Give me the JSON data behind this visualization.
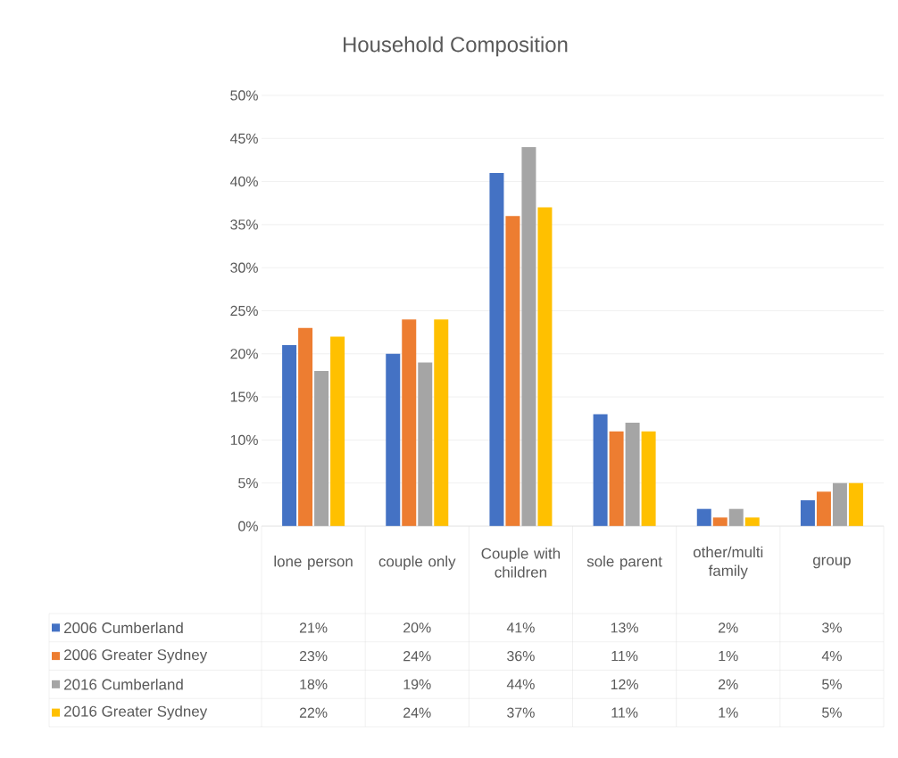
{
  "chart_data": {
    "type": "bar",
    "title": "Household Composition",
    "categories": [
      "lone person",
      "couple only",
      "Couple with children",
      "sole parent",
      "other/multi family",
      "group"
    ],
    "series": [
      {
        "name": "2006 Cumberland",
        "color": "#4472c4",
        "values": [
          21,
          20,
          41,
          13,
          2,
          3
        ],
        "value_labels": [
          "21%",
          "20%",
          "41%",
          "13%",
          "2%",
          "3%"
        ]
      },
      {
        "name": "2006 Greater Sydney",
        "color": "#ed7d31",
        "values": [
          23,
          24,
          36,
          11,
          1,
          4
        ],
        "value_labels": [
          "23%",
          "24%",
          "36%",
          "11%",
          "1%",
          "4%"
        ]
      },
      {
        "name": "2016 Cumberland",
        "color": "#a5a5a5",
        "values": [
          18,
          19,
          44,
          12,
          2,
          5
        ],
        "value_labels": [
          "18%",
          "19%",
          "44%",
          "12%",
          "2%",
          "5%"
        ]
      },
      {
        "name": "2016 Greater Sydney",
        "color": "#ffc000",
        "values": [
          22,
          24,
          37,
          11,
          1,
          5
        ],
        "value_labels": [
          "22%",
          "24%",
          "37%",
          "11%",
          "1%",
          "5%"
        ]
      }
    ],
    "ylim": [
      0,
      50
    ],
    "yticks": [
      {
        "value": 0,
        "label": "0%"
      },
      {
        "value": 5,
        "label": "5%"
      },
      {
        "value": 10,
        "label": "10%"
      },
      {
        "value": 15,
        "label": "15%"
      },
      {
        "value": 20,
        "label": "20%"
      },
      {
        "value": 25,
        "label": "25%"
      },
      {
        "value": 30,
        "label": "30%"
      },
      {
        "value": 35,
        "label": "35%"
      },
      {
        "value": 40,
        "label": "40%"
      },
      {
        "value": 45,
        "label": "45%"
      },
      {
        "value": 50,
        "label": "50%"
      }
    ],
    "grid": "y",
    "legend": "bottom"
  }
}
